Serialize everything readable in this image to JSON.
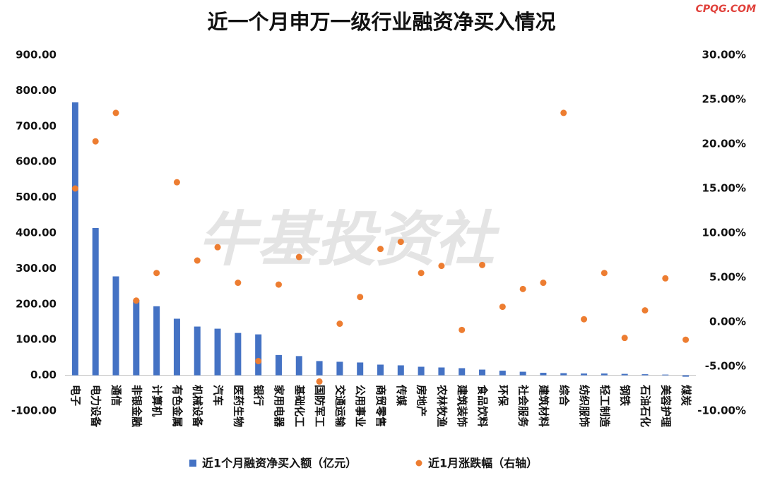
{
  "chart_data": {
    "type": "bar_scatter",
    "title": "近一个月申万一级行业融资净买入情况",
    "source": "CPQG.COM",
    "watermark": "牛基投资社",
    "categories": [
      "电子",
      "电力设备",
      "通信",
      "非银金融",
      "计算机",
      "有色金属",
      "机械设备",
      "汽车",
      "医药生物",
      "银行",
      "家用电器",
      "基础化工",
      "国防军工",
      "交通运输",
      "公用事业",
      "商贸零售",
      "传媒",
      "房地产",
      "农林牧渔",
      "建筑装饰",
      "食品饮料",
      "环保",
      "社会服务",
      "建筑材料",
      "综合",
      "纺织服饰",
      "轻工制造",
      "钢铁",
      "石油石化",
      "美容护理",
      "煤炭"
    ],
    "series": [
      {
        "name": "近1个月融资净买入额（亿元）",
        "type": "bar",
        "color": "#4472c4",
        "values": [
          767,
          414,
          278,
          212,
          194,
          159,
          137,
          131,
          119,
          115,
          57,
          54,
          40,
          38,
          36,
          30,
          28,
          24,
          22,
          20,
          16,
          13,
          10,
          7,
          6,
          5,
          5,
          4,
          3,
          2,
          -4
        ]
      },
      {
        "name": "近1月涨跌幅（右轴）",
        "type": "scatter",
        "axis": "y2",
        "color": "#ed7d31",
        "values": [
          15.0,
          20.3,
          23.5,
          2.4,
          5.5,
          15.7,
          6.9,
          8.4,
          4.4,
          -4.4,
          4.2,
          7.3,
          -6.7,
          -0.2,
          2.8,
          8.2,
          9.0,
          5.5,
          6.3,
          -0.9,
          6.4,
          1.7,
          3.7,
          4.4,
          23.5,
          0.3,
          5.5,
          -1.8,
          1.3,
          4.9,
          -2.0
        ]
      }
    ],
    "ylim": [
      -100,
      900
    ],
    "yticks": [
      {
        "value": -100,
        "label": "-100.00"
      },
      {
        "value": 0,
        "label": "0.00"
      },
      {
        "value": 100,
        "label": "100.00"
      },
      {
        "value": 200,
        "label": "200.00"
      },
      {
        "value": 300,
        "label": "300.00"
      },
      {
        "value": 400,
        "label": "400.00"
      },
      {
        "value": 500,
        "label": "500.00"
      },
      {
        "value": 600,
        "label": "600.00"
      },
      {
        "value": 700,
        "label": "700.00"
      },
      {
        "value": 800,
        "label": "800.00"
      },
      {
        "value": 900,
        "label": "900.00"
      }
    ],
    "y2lim": [
      -10,
      30
    ],
    "y2ticks": [
      {
        "value": -10,
        "label": "-10.00%"
      },
      {
        "value": -5,
        "label": "-5.00%"
      },
      {
        "value": 0,
        "label": "0.00%"
      },
      {
        "value": 5,
        "label": "5.00%"
      },
      {
        "value": 10,
        "label": "10.00%"
      },
      {
        "value": 15,
        "label": "15.00%"
      },
      {
        "value": 20,
        "label": "20.00%"
      },
      {
        "value": 25,
        "label": "25.00%"
      },
      {
        "value": 30,
        "label": "30.00%"
      }
    ],
    "grid": false,
    "legend": "bottom"
  }
}
